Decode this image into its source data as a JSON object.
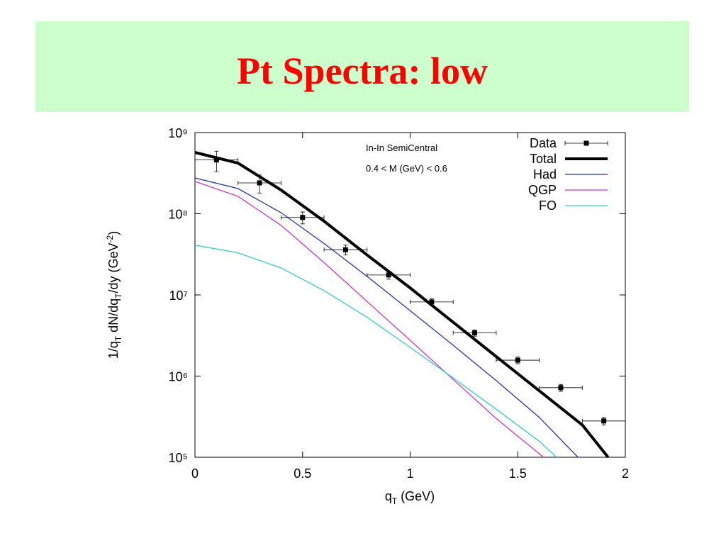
{
  "title": "Pt Spectra: low",
  "chart_data": {
    "type": "line",
    "xlabel": [
      "q",
      "T",
      " (GeV)"
    ],
    "ylabel": [
      "1/q",
      "T",
      " dN/dq",
      "T",
      "/dy (GeV",
      "-2",
      ")"
    ],
    "annotations": [
      "In-In SemiCentral",
      "0.4 < M (GeV) < 0.6"
    ],
    "xlim": [
      0,
      2
    ],
    "xticks": [
      0,
      0.5,
      1,
      1.5,
      2
    ],
    "ylim": [
      100000,
      1000000000
    ],
    "log_y": true,
    "yticks": [
      {
        "value": 100000,
        "label": "10⁵"
      },
      {
        "value": 1000000,
        "label": "10⁶"
      },
      {
        "value": 10000000,
        "label": "10⁷"
      },
      {
        "value": 100000000,
        "label": "10⁸"
      },
      {
        "value": 1000000000,
        "label": "10⁹"
      }
    ],
    "legend": "top right",
    "points": {
      "name": "Data",
      "color": "#000000",
      "x": [
        0.1,
        0.3,
        0.5,
        0.7,
        0.9,
        1.1,
        1.3,
        1.5,
        1.7,
        1.9
      ],
      "values": [
        460000000,
        240000000,
        90000000,
        36000000,
        17600000,
        8200000,
        3400000,
        1570000,
        720000,
        280000
      ],
      "xerr": [
        0.1,
        0.1,
        0.1,
        0.1,
        0.1,
        0.1,
        0.1,
        0.1,
        0.1,
        0.1
      ],
      "yerr": [
        130000000,
        60000000,
        15000000,
        5000000,
        2000000,
        800000,
        300000,
        150000,
        70000,
        30000
      ]
    },
    "series": [
      {
        "name": "Total",
        "color": "#000000",
        "x": [
          0,
          0.2,
          0.4,
          0.6,
          0.8,
          1.0,
          1.2,
          1.4,
          1.6,
          1.8,
          1.92
        ],
        "values": [
          570000000,
          420000000,
          196000000,
          81000000,
          31000000,
          12200000,
          4600000,
          1740000,
          660000,
          250000,
          100000
        ]
      },
      {
        "name": "Had",
        "color": "#2233aa",
        "x": [
          0,
          0.2,
          0.4,
          0.6,
          0.8,
          1.0,
          1.2,
          1.4,
          1.6,
          1.78
        ],
        "values": [
          276000000,
          204000000,
          103000000,
          43000000,
          16900000,
          6400000,
          2400000,
          880000,
          310000,
          100000
        ]
      },
      {
        "name": "QGP",
        "color": "#cc33cc",
        "x": [
          0,
          0.2,
          0.4,
          0.6,
          0.8,
          1.0,
          1.2,
          1.4,
          1.62
        ],
        "values": [
          250000000,
          164000000,
          72000000,
          25000000,
          8300000,
          2760000,
          910000,
          300000,
          100000
        ]
      },
      {
        "name": "FO",
        "color": "#33cccc",
        "x": [
          0,
          0.2,
          0.4,
          0.6,
          0.8,
          1.0,
          1.2,
          1.4,
          1.6,
          1.68
        ],
        "values": [
          41000000,
          33000000,
          21500000,
          11300000,
          5300000,
          2260000,
          950000,
          390000,
          158000,
          100000
        ]
      }
    ]
  }
}
